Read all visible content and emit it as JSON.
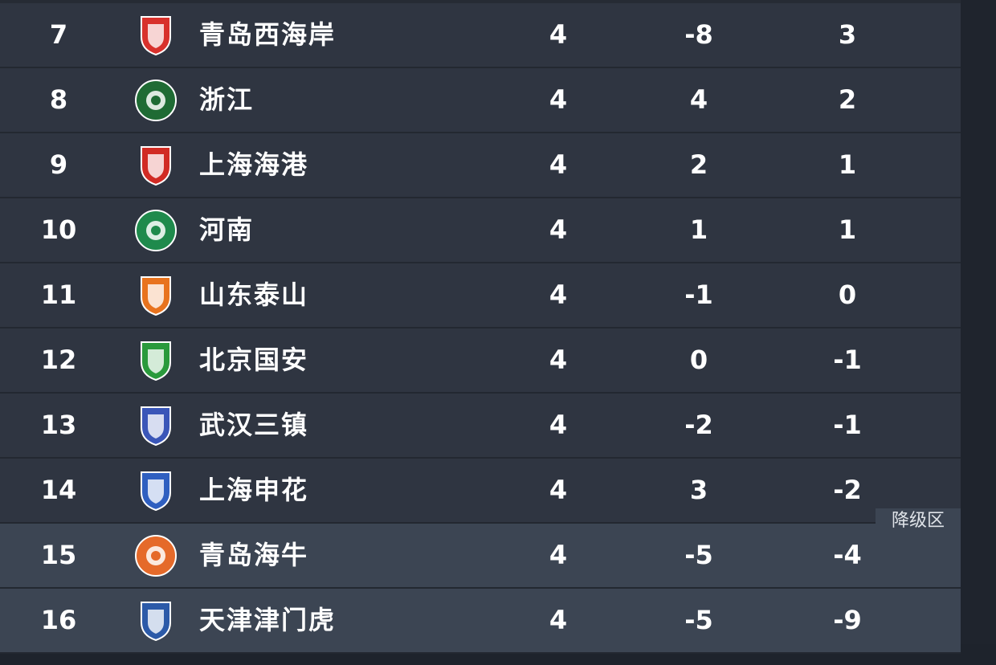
{
  "standings": [
    {
      "rank": "7",
      "team": "青岛西海岸",
      "c1": "4",
      "c2": "-8",
      "c3": "3",
      "logo_color": "#d8312c",
      "logo_shape": "shield",
      "zone": ""
    },
    {
      "rank": "8",
      "team": "浙江",
      "c1": "4",
      "c2": "4",
      "c3": "2",
      "logo_color": "#1f6b34",
      "logo_shape": "circle",
      "zone": ""
    },
    {
      "rank": "9",
      "team": "上海海港",
      "c1": "4",
      "c2": "2",
      "c3": "1",
      "logo_color": "#d12b24",
      "logo_shape": "shield",
      "zone": ""
    },
    {
      "rank": "10",
      "team": "河南",
      "c1": "4",
      "c2": "1",
      "c3": "1",
      "logo_color": "#1f8a4c",
      "logo_shape": "circle",
      "zone": ""
    },
    {
      "rank": "11",
      "team": "山东泰山",
      "c1": "4",
      "c2": "-1",
      "c3": "0",
      "logo_color": "#e8731e",
      "logo_shape": "shield",
      "zone": ""
    },
    {
      "rank": "12",
      "team": "北京国安",
      "c1": "4",
      "c2": "0",
      "c3": "-1",
      "logo_color": "#2a9a3c",
      "logo_shape": "shield",
      "zone": ""
    },
    {
      "rank": "13",
      "team": "武汉三镇",
      "c1": "4",
      "c2": "-2",
      "c3": "-1",
      "logo_color": "#3a56b8",
      "logo_shape": "shield",
      "zone": ""
    },
    {
      "rank": "14",
      "team": "上海申花",
      "c1": "4",
      "c2": "3",
      "c3": "-2",
      "logo_color": "#2f5fc0",
      "logo_shape": "shield",
      "zone": ""
    },
    {
      "rank": "15",
      "team": "青岛海牛",
      "c1": "4",
      "c2": "-5",
      "c3": "-4",
      "logo_color": "#e56a2a",
      "logo_shape": "circle",
      "zone": "relegation"
    },
    {
      "rank": "16",
      "team": "天津津门虎",
      "c1": "4",
      "c2": "-5",
      "c3": "-9",
      "logo_color": "#2c5aa8",
      "logo_shape": "shield",
      "zone": "relegation"
    }
  ],
  "relegation_label": "降级区",
  "colors": {
    "row": "#2f3541",
    "relegation_row": "#3c4553",
    "text": "#ffffff"
  }
}
